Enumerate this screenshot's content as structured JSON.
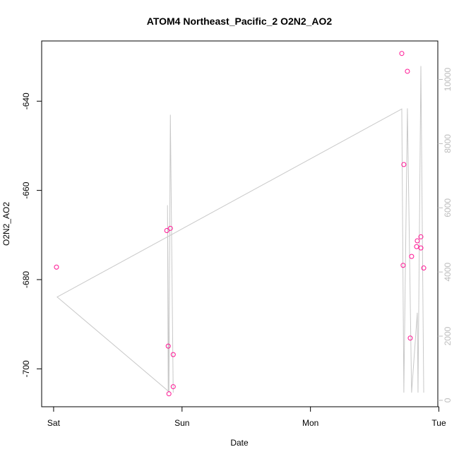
{
  "chart_data": {
    "type": "scatter",
    "title": "ATOM4 Northeast_Pacific_2 O2N2_AO2",
    "xlabel": "Date",
    "ylabel": "O2N2_AO2",
    "x_ticks": [
      "Sat",
      "Sun",
      "Mon",
      "Tue"
    ],
    "y_ticks": [
      -640,
      -660,
      -680,
      -700
    ],
    "y_lim": [
      -708.5,
      -626.5
    ],
    "y2_ticks": [
      0,
      2000,
      4000,
      6000,
      8000,
      10000
    ],
    "y2_lim": [
      -200,
      11200
    ],
    "x_lim": [
      "Fri 21:46",
      "Mon 23:48"
    ],
    "grid": false,
    "colors": {
      "points": "#ff1493",
      "line": "#c8c8c8",
      "right_axis": "#bdbdbd"
    },
    "series": [
      {
        "type": "scatter",
        "axis": "left",
        "points": [
          {
            "x": "Sat 00:32",
            "y": -677.2
          },
          {
            "x": "Sat 21:09",
            "y": -669.0
          },
          {
            "x": "Sat 21:49",
            "y": -668.5
          },
          {
            "x": "Sat 21:25",
            "y": -694.9
          },
          {
            "x": "Sat 22:21",
            "y": -696.8
          },
          {
            "x": "Sat 22:21",
            "y": -704.0
          },
          {
            "x": "Sat 21:33",
            "y": -705.6
          },
          {
            "x": "Mon 17:04",
            "y": -629.3
          },
          {
            "x": "Mon 18:07",
            "y": -633.3
          },
          {
            "x": "Mon 17:27",
            "y": -654.2
          },
          {
            "x": "Mon 17:19",
            "y": -676.8
          },
          {
            "x": "Mon 18:54",
            "y": -674.8
          },
          {
            "x": "Mon 18:39",
            "y": -693.1
          },
          {
            "x": "Mon 19:58",
            "y": -671.3
          },
          {
            "x": "Mon 19:50",
            "y": -672.6
          },
          {
            "x": "Mon 20:38",
            "y": -670.4
          },
          {
            "x": "Mon 20:38",
            "y": -672.9
          },
          {
            "x": "Mon 21:10",
            "y": -677.4
          }
        ]
      },
      {
        "type": "line",
        "axis": "right",
        "points": [
          {
            "x": "Sat 22:21",
            "y": 240
          },
          {
            "x": "Sat 21:49",
            "y": 8900
          },
          {
            "x": "Sat 21:33",
            "y": 240
          },
          {
            "x": "Sat 21:17",
            "y": 6080
          },
          {
            "x": "Sat 21:25",
            "y": 290
          },
          {
            "x": "Sat 00:40",
            "y": 3220
          },
          {
            "x": "Mon 17:04",
            "y": 9080
          },
          {
            "x": "Mon 17:27",
            "y": 240
          },
          {
            "x": "Mon 18:07",
            "y": 9100
          },
          {
            "x": "Mon 18:54",
            "y": 240
          },
          {
            "x": "Mon 19:58",
            "y": 2730
          },
          {
            "x": "Mon 20:06",
            "y": 240
          },
          {
            "x": "Mon 20:38",
            "y": 10420
          },
          {
            "x": "Mon 21:10",
            "y": 240
          }
        ]
      }
    ]
  }
}
